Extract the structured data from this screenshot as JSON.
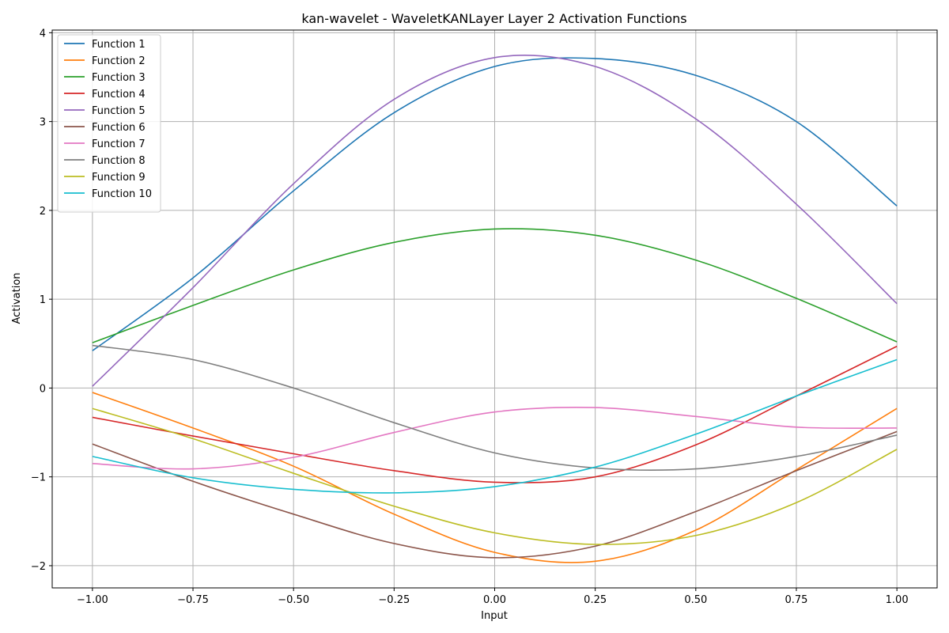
{
  "chart_data": {
    "type": "line",
    "title": "kan-wavelet - WaveletKANLayer Layer 2 Activation Functions",
    "xlabel": "Input",
    "ylabel": "Activation",
    "xlim": [
      -1.1,
      1.1
    ],
    "ylim": [
      -2.25,
      4.03
    ],
    "xticks": [
      -1.0,
      -0.75,
      -0.5,
      -0.25,
      0.0,
      0.25,
      0.5,
      0.75,
      1.0
    ],
    "xtick_labels": [
      "−1.00",
      "−0.75",
      "−0.50",
      "−0.25",
      "0.00",
      "0.25",
      "0.50",
      "0.75",
      "1.00"
    ],
    "yticks": [
      -2,
      -1,
      0,
      1,
      2,
      3,
      4
    ],
    "ytick_labels": [
      "−2",
      "−1",
      "0",
      "1",
      "2",
      "3",
      "4"
    ],
    "grid": true,
    "legend_position": "top-left",
    "x": [
      -1.0,
      -0.75,
      -0.5,
      -0.25,
      0.0,
      0.25,
      0.5,
      0.75,
      1.0
    ],
    "series": [
      {
        "name": "Function 1",
        "color": "#1f77b4",
        "values": [
          0.42,
          1.24,
          2.22,
          3.1,
          3.62,
          3.71,
          3.52,
          3.0,
          2.05
        ]
      },
      {
        "name": "Function 2",
        "color": "#ff7f0e",
        "values": [
          -0.05,
          -0.45,
          -0.88,
          -1.42,
          -1.85,
          -1.95,
          -1.6,
          -0.92,
          -0.23
        ]
      },
      {
        "name": "Function 3",
        "color": "#2ca02c",
        "values": [
          0.51,
          0.93,
          1.33,
          1.64,
          1.79,
          1.72,
          1.44,
          1.01,
          0.52
        ]
      },
      {
        "name": "Function 4",
        "color": "#d62728",
        "values": [
          -0.33,
          -0.54,
          -0.74,
          -0.93,
          -1.06,
          -1.0,
          -0.64,
          -0.09,
          0.47
        ]
      },
      {
        "name": "Function 5",
        "color": "#9467bd",
        "values": [
          0.02,
          1.13,
          2.3,
          3.25,
          3.72,
          3.62,
          3.03,
          2.07,
          0.95
        ]
      },
      {
        "name": "Function 6",
        "color": "#8c564b",
        "values": [
          -0.63,
          -1.05,
          -1.42,
          -1.75,
          -1.91,
          -1.78,
          -1.39,
          -0.93,
          -0.49
        ]
      },
      {
        "name": "Function 7",
        "color": "#e377c2",
        "values": [
          -0.85,
          -0.91,
          -0.78,
          -0.5,
          -0.27,
          -0.22,
          -0.32,
          -0.44,
          -0.45
        ]
      },
      {
        "name": "Function 8",
        "color": "#7f7f7f",
        "values": [
          0.48,
          0.32,
          0.0,
          -0.39,
          -0.73,
          -0.9,
          -0.91,
          -0.77,
          -0.53
        ]
      },
      {
        "name": "Function 9",
        "color": "#bcbd22",
        "values": [
          -0.23,
          -0.57,
          -0.96,
          -1.33,
          -1.63,
          -1.76,
          -1.66,
          -1.29,
          -0.69
        ]
      },
      {
        "name": "Function 10",
        "color": "#17becf",
        "values": [
          -0.77,
          -1.01,
          -1.14,
          -1.18,
          -1.11,
          -0.89,
          -0.52,
          -0.09,
          0.32
        ]
      }
    ]
  }
}
